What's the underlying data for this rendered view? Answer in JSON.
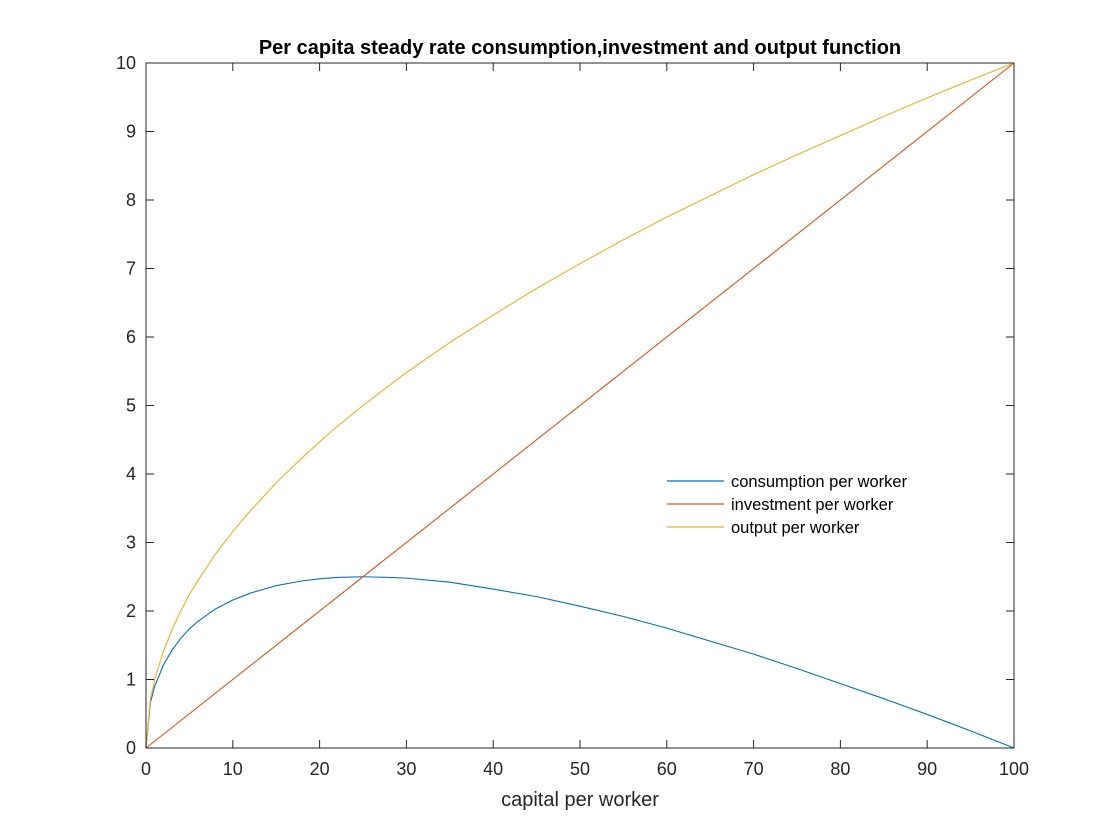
{
  "chart_data": {
    "type": "line",
    "title": "Per capita steady rate consumption,investment and output function",
    "xlabel": "capital per worker",
    "ylabel": "",
    "xlim": [
      0,
      100
    ],
    "ylim": [
      0,
      10
    ],
    "xticks": [
      0,
      10,
      20,
      30,
      40,
      50,
      60,
      70,
      80,
      90,
      100
    ],
    "yticks": [
      0,
      1,
      2,
      3,
      4,
      5,
      6,
      7,
      8,
      9,
      10
    ],
    "grid": false,
    "legend_position": "center-right",
    "series": [
      {
        "name": "consumption per worker",
        "color": "#0072BD",
        "x": [
          0,
          0.5,
          1,
          2,
          3,
          4,
          5,
          6,
          8,
          10,
          12,
          15,
          18,
          20,
          22,
          25,
          28,
          30,
          35,
          40,
          45,
          50,
          55,
          60,
          65,
          70,
          75,
          80,
          85,
          90,
          95,
          100
        ],
        "y": [
          0,
          0.66,
          0.9,
          1.21,
          1.43,
          1.6,
          1.74,
          1.85,
          2.03,
          2.16,
          2.26,
          2.37,
          2.44,
          2.47,
          2.49,
          2.5,
          2.49,
          2.48,
          2.42,
          2.32,
          2.21,
          2.07,
          1.92,
          1.75,
          1.56,
          1.37,
          1.16,
          0.94,
          0.72,
          0.49,
          0.25,
          0
        ]
      },
      {
        "name": "investment per worker",
        "color": "#D95319",
        "x": [
          0,
          100
        ],
        "y": [
          0,
          10
        ]
      },
      {
        "name": "output per worker",
        "color": "#EDB120",
        "x": [
          0,
          0.5,
          1,
          2,
          3,
          4,
          5,
          6,
          8,
          10,
          12,
          15,
          18,
          20,
          22,
          25,
          28,
          30,
          35,
          40,
          45,
          50,
          55,
          60,
          65,
          70,
          75,
          80,
          85,
          90,
          95,
          100
        ],
        "y": [
          0,
          0.71,
          1.0,
          1.41,
          1.73,
          2.0,
          2.24,
          2.45,
          2.83,
          3.16,
          3.46,
          3.87,
          4.24,
          4.47,
          4.69,
          5.0,
          5.29,
          5.48,
          5.92,
          6.32,
          6.71,
          7.07,
          7.42,
          7.75,
          8.06,
          8.37,
          8.66,
          8.94,
          9.22,
          9.49,
          9.75,
          10.0
        ]
      }
    ]
  }
}
